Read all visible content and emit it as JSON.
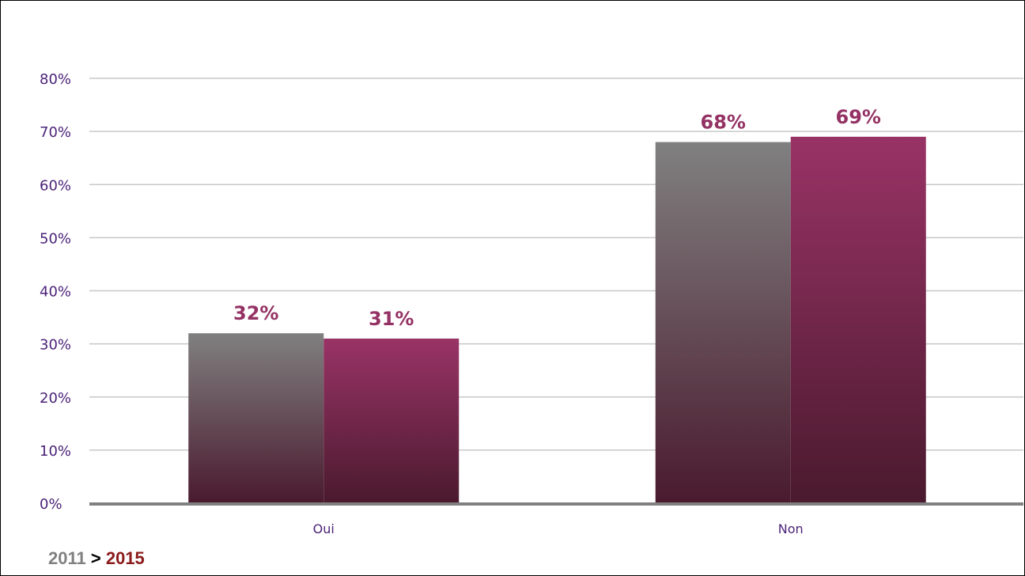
{
  "chart_data": {
    "type": "bar",
    "categories": [
      "Oui",
      "Non"
    ],
    "series": [
      {
        "name": "2011",
        "values": [
          32,
          68
        ],
        "labels": [
          "32%",
          "68%"
        ],
        "color": "#808080",
        "color_bottom": "#4a1a2e"
      },
      {
        "name": "2015",
        "values": [
          31,
          69
        ],
        "labels": [
          "31%",
          "69%"
        ],
        "color": "#993366",
        "color_bottom": "#4a1a2e"
      }
    ],
    "y_ticks": [
      "0%",
      "10%",
      "20%",
      "30%",
      "40%",
      "50%",
      "60%",
      "70%",
      "80%"
    ],
    "ylim": [
      0,
      80
    ],
    "grid": true,
    "title": "",
    "xlabel": "",
    "ylabel": "",
    "label_color": "#943264",
    "axis_text_color": "#4b2378"
  },
  "legend": {
    "from": "2011",
    "separator": ">",
    "to": "2015"
  }
}
